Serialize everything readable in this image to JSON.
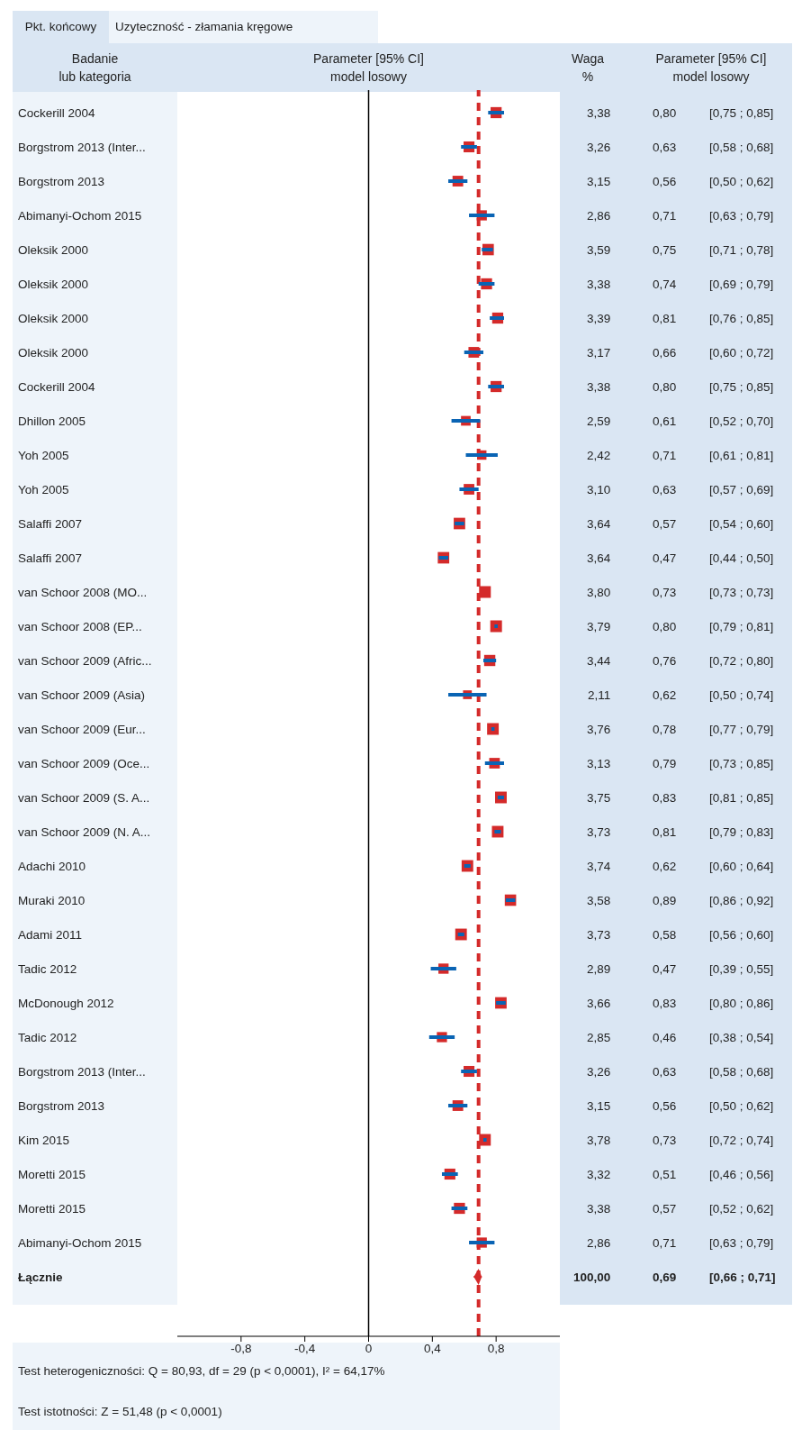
{
  "chart_data": {
    "type": "scatter",
    "orientation": "horizontal",
    "categories": [
      "Cockerill 2004",
      "Borgstrom 2013 (Inter...",
      "Borgstrom 2013",
      "Abimanyi-Ochom 2015",
      "Oleksik 2000",
      "Oleksik 2000",
      "Oleksik 2000",
      "Oleksik 2000",
      "Cockerill 2004",
      "Dhillon 2005",
      "Yoh 2005",
      "Yoh 2005",
      "Salaffi 2007",
      "Salaffi 2007",
      "van Schoor 2008 (MO...",
      "van Schoor 2008 (EP...",
      "van Schoor 2009 (Afric...",
      "van Schoor 2009 (Asia)",
      "van Schoor 2009 (Eur...",
      "van Schoor 2009 (Oce...",
      "van Schoor 2009 (S. A...",
      "van Schoor 2009 (N. A...",
      "Adachi 2010",
      "Muraki 2010",
      "Adami 2011",
      "Tadic 2012",
      "McDonough 2012",
      "Tadic 2012",
      "Borgstrom 2013 (Inter...",
      "Borgstrom 2013",
      "Kim 2015",
      "Moretti 2015",
      "Moretti 2015",
      "Abimanyi-Ochom 2015",
      "Łącznie"
    ],
    "series": [
      {
        "type": "scatter",
        "marker": "square",
        "color": "#d42a2a",
        "values": [
          0.8,
          0.63,
          0.56,
          0.71,
          0.75,
          0.74,
          0.81,
          0.66,
          0.8,
          0.61,
          0.71,
          0.63,
          0.57,
          0.47,
          0.73,
          0.8,
          0.76,
          0.62,
          0.78,
          0.79,
          0.83,
          0.81,
          0.62,
          0.89,
          0.58,
          0.47,
          0.83,
          0.46,
          0.63,
          0.56,
          0.73,
          0.51,
          0.57,
          0.71,
          null
        ],
        "errors": [
          [
            0.75,
            0.85
          ],
          [
            0.58,
            0.68
          ],
          [
            0.5,
            0.62
          ],
          [
            0.63,
            0.79
          ],
          [
            0.71,
            0.78
          ],
          [
            0.69,
            0.79
          ],
          [
            0.76,
            0.85
          ],
          [
            0.6,
            0.72
          ],
          [
            0.75,
            0.85
          ],
          [
            0.52,
            0.7
          ],
          [
            0.61,
            0.81
          ],
          [
            0.57,
            0.69
          ],
          [
            0.54,
            0.6
          ],
          [
            0.44,
            0.5
          ],
          [
            0.73,
            0.73
          ],
          [
            0.79,
            0.81
          ],
          [
            0.72,
            0.8
          ],
          [
            0.5,
            0.74
          ],
          [
            0.77,
            0.79
          ],
          [
            0.73,
            0.85
          ],
          [
            0.81,
            0.85
          ],
          [
            0.79,
            0.83
          ],
          [
            0.6,
            0.64
          ],
          [
            0.86,
            0.92
          ],
          [
            0.56,
            0.6
          ],
          [
            0.39,
            0.55
          ],
          [
            0.8,
            0.86
          ],
          [
            0.38,
            0.54
          ],
          [
            0.58,
            0.68
          ],
          [
            0.5,
            0.62
          ],
          [
            0.72,
            0.74
          ],
          [
            0.46,
            0.56
          ],
          [
            0.52,
            0.62
          ],
          [
            0.63,
            0.79
          ],
          null
        ],
        "sizes": [
          0.89,
          0.86,
          0.83,
          0.75,
          0.94,
          0.89,
          0.89,
          0.83,
          0.89,
          0.68,
          0.64,
          0.82,
          0.96,
          0.96,
          1,
          1.0,
          0.91,
          0.56,
          0.99,
          0.82,
          0.99,
          0.98,
          0.98,
          0.94,
          0.98,
          0.76,
          0.96,
          0.75,
          0.86,
          0.83,
          0.99,
          0.87,
          0.89,
          0.75,
          null
        ],
        "value_labels": [
          "3,38 0,80 [0,75 ; 0,85]",
          "3,26 0,63 [0,58 ; 0,68]",
          "3,15 0,56 [0,50 ; 0,62]",
          "2,86 0,71 [0,63 ; 0,79]",
          "3,59 0,75 [0,71 ; 0,78]",
          "3,38 0,74 [0,69 ; 0,79]",
          "3,39 0,81 [0,76 ; 0,85]",
          "3,17 0,66 [0,60 ; 0,72]",
          "3,38 0,80 [0,75 ; 0,85]",
          "2,59 0,61 [0,52 ; 0,70]",
          "2,42 0,71 [0,61 ; 0,81]",
          "3,10 0,63 [0,57 ; 0,69]",
          "3,64 0,57 [0,54 ; 0,60]",
          "3,64 0,47 [0,44 ; 0,50]",
          "3,80 0,73 [0,73 ; 0,73]",
          "3,79 0,80 [0,79 ; 0,81]",
          "3,44 0,76 [0,72 ; 0,80]",
          "2,11 0,62 [0,50 ; 0,74]",
          "3,76 0,78 [0,77 ; 0,79]",
          "3,13 0,79 [0,73 ; 0,85]",
          "3,75 0,83 [0,81 ; 0,85]",
          "3,73 0,81 [0,79 ; 0,83]",
          "3,74 0,62 [0,60 ; 0,64]",
          "3,58 0,89 [0,86 ; 0,92]",
          "3,73 0,58 [0,56 ; 0,60]",
          "2,89 0,47 [0,39 ; 0,55]",
          "3,66 0,83 [0,80 ; 0,86]",
          "2,85 0,46 [0,38 ; 0,54]",
          "3,26 0,63 [0,58 ; 0,68]",
          "3,15 0,56 [0,50 ; 0,62]",
          "3,78 0,73 [0,72 ; 0,74]",
          "3,32 0,51 [0,46 ; 0,56]",
          "3,38 0,57 [0,52 ; 0,62]",
          "2,86 0,71 [0,63 ; 0,79]",
          null
        ]
      },
      {
        "type": "scatter",
        "marker": "diamond",
        "color": "#d42a2a",
        "values": [
          null,
          null,
          null,
          null,
          null,
          null,
          null,
          null,
          null,
          null,
          null,
          null,
          null,
          null,
          null,
          null,
          null,
          null,
          null,
          null,
          null,
          null,
          null,
          null,
          null,
          null,
          null,
          null,
          null,
          null,
          null,
          null,
          null,
          null,
          0.69
        ],
        "errors": [
          null,
          null,
          null,
          null,
          null,
          null,
          null,
          null,
          null,
          null,
          null,
          null,
          null,
          null,
          null,
          null,
          null,
          null,
          null,
          null,
          null,
          null,
          null,
          null,
          null,
          null,
          null,
          null,
          null,
          null,
          null,
          null,
          null,
          null,
          [
            0.66,
            0.71
          ]
        ],
        "value_labels": [
          null,
          null,
          null,
          null,
          null,
          null,
          null,
          null,
          null,
          null,
          null,
          null,
          null,
          null,
          null,
          null,
          null,
          null,
          null,
          null,
          null,
          null,
          null,
          null,
          null,
          null,
          null,
          null,
          null,
          null,
          null,
          null,
          null,
          null,
          "100,00 0,69 [0,66 ; 0,71]"
        ]
      }
    ],
    "xlim": [
      -1.2,
      1.2
    ],
    "xticks": [
      {
        "value": -0.8,
        "label": "-0,8"
      },
      {
        "value": -0.4,
        "label": "-0,4"
      },
      {
        "value": 0,
        "label": "0"
      },
      {
        "value": 0.4,
        "label": "0,4"
      },
      {
        "value": 0.8,
        "label": "0,8"
      }
    ],
    "ref_lines": [
      {
        "axis": "x",
        "value": 0,
        "color": "#000000",
        "line_style": "solid"
      },
      {
        "axis": "x",
        "value": 0.69,
        "color": "#d42a2a",
        "line_style": "dashed"
      }
    ],
    "annotations": [
      "Pkt. końcowy",
      "Uzyteczność - złamania kręgowe",
      "Badanie",
      "lub kategoria",
      "Parameter [95% CI]",
      "model losowy",
      "Waga",
      "%",
      "Parameter [95% CI]",
      "model losowy",
      "Test heterogeniczności: Q = 80,93, df = 29 (p < 0,0001), I² = 64,17%",
      "Test istotności: Z = 51,48 (p < 0,0001)"
    ]
  }
}
